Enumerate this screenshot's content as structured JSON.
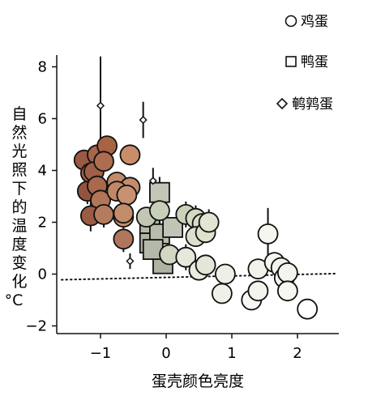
{
  "chart_data": {
    "type": "scatter",
    "xlabel": "蛋壳颜色亮度",
    "ylabel": "自然光照下的温度变化",
    "yunit": "°C",
    "xlim": [
      -1.6,
      2.6
    ],
    "ylim": [
      -2.5,
      8.4
    ],
    "xticks": [
      -1,
      0,
      1,
      2
    ],
    "yticks": [
      -2,
      0,
      2,
      4,
      6,
      8
    ],
    "xtick_labels": [
      "−1",
      "0",
      "1",
      "2"
    ],
    "ytick_labels": [
      "−2",
      "0",
      "2",
      "4",
      "6",
      "8"
    ],
    "trend_line": {
      "style": "dotted",
      "points": [
        [
          -1.6,
          -0.22
        ],
        [
          2.6,
          0.02
        ]
      ]
    },
    "legend": [
      {
        "label": "鸡蛋",
        "marker": "circle"
      },
      {
        "label": "鸭蛋",
        "marker": "square"
      },
      {
        "label": "鹌鹑蛋",
        "marker": "diamond"
      }
    ],
    "series": [
      {
        "name": "鸡蛋",
        "marker": "circle",
        "points": [
          [
            -1.25,
            4.4,
            0.2,
            "#9a5a42"
          ],
          [
            -1.15,
            3.9,
            0.5,
            "#9d5d45"
          ],
          [
            -1.05,
            4.6,
            0.4,
            "#a86648"
          ],
          [
            -0.9,
            4.95,
            0.3,
            "#a76343"
          ],
          [
            -1.1,
            3.95,
            0.5,
            "#a05f46"
          ],
          [
            -0.95,
            4.35,
            0.3,
            "#ae6d50"
          ],
          [
            -1.2,
            3.2,
            0.5,
            "#94533d"
          ],
          [
            -1.05,
            3.4,
            0.4,
            "#a9694c"
          ],
          [
            -1.0,
            2.85,
            0.3,
            "#b37558"
          ],
          [
            -0.75,
            3.55,
            0.3,
            "#c18a6a"
          ],
          [
            -0.55,
            3.35,
            0.3,
            "#c48c6b"
          ],
          [
            -0.55,
            4.6,
            0.4,
            "#c98d69"
          ],
          [
            -0.75,
            3.2,
            0.3,
            "#c08868"
          ],
          [
            -0.6,
            3.05,
            0.3,
            "#c89272"
          ],
          [
            -1.15,
            2.25,
            0.6,
            "#9b5c44"
          ],
          [
            -0.95,
            2.3,
            0.5,
            "#b57b5e"
          ],
          [
            -0.65,
            2.2,
            0.3,
            "#c3906f"
          ],
          [
            -0.65,
            2.35,
            0.3,
            "#c38c6b"
          ],
          [
            -0.65,
            1.35,
            0.5,
            "#b0765d"
          ],
          [
            -0.3,
            2.2,
            0.3,
            "#c3c6b4"
          ],
          [
            -0.1,
            2.45,
            0.3,
            "#c7cfb8"
          ],
          [
            0.3,
            2.3,
            0.5,
            "#c9d1b9"
          ],
          [
            0.45,
            2.15,
            0.5,
            "#d3d9c2"
          ],
          [
            0.55,
            1.95,
            0.3,
            "#d7dcc6"
          ],
          [
            0.45,
            1.45,
            0.4,
            "#dbe0cb"
          ],
          [
            0.6,
            1.6,
            0.3,
            "#dde2cd"
          ],
          [
            0.65,
            2.0,
            0.5,
            "#e1e5d2"
          ],
          [
            0.05,
            0.75,
            0.3,
            "#d2d7c3"
          ],
          [
            0.3,
            0.65,
            0.5,
            "#e5e8da"
          ],
          [
            0.5,
            0.15,
            0.4,
            "#eaece0"
          ],
          [
            0.6,
            0.35,
            0.3,
            "#e3e6d8"
          ],
          [
            0.9,
            0.0,
            0.3,
            "#eef0e7"
          ],
          [
            0.85,
            -0.75,
            0.3,
            "#eff1e8"
          ],
          [
            1.3,
            -1.0,
            0.3,
            "#f7f8f3"
          ],
          [
            1.4,
            -0.65,
            0.3,
            "#f3f4ee"
          ],
          [
            1.4,
            0.2,
            0.3,
            "#f1f3eb"
          ],
          [
            1.55,
            1.55,
            1.0,
            "#f5f6f0"
          ],
          [
            1.65,
            0.45,
            0.3,
            "#f4f5ef"
          ],
          [
            1.75,
            0.25,
            0.3,
            "#f2f4ec"
          ],
          [
            1.8,
            -0.15,
            0.3,
            "#f5f6f0"
          ],
          [
            1.85,
            0.05,
            0.3,
            "#f3f4ee"
          ],
          [
            1.85,
            -0.65,
            0.3,
            "#f6f7f2"
          ],
          [
            2.15,
            -1.35,
            0.3,
            "#ffffff"
          ]
        ]
      },
      {
        "name": "鸭蛋",
        "marker": "square",
        "points": [
          [
            -0.1,
            3.15,
            0.6,
            "#c3c6b7"
          ],
          [
            -0.25,
            1.95,
            0.6,
            "#b5b9a9"
          ],
          [
            -0.25,
            1.2,
            0.5,
            "#afb3a3"
          ],
          [
            -0.1,
            1.55,
            0.5,
            "#b8bcac"
          ],
          [
            -0.05,
            0.4,
            0.4,
            "#aeb2a1"
          ],
          [
            0.1,
            1.8,
            0.3,
            "#c0c4b4"
          ],
          [
            -0.2,
            0.95,
            0.3,
            "#b4b8a8"
          ]
        ]
      },
      {
        "name": "鹌鹑蛋",
        "marker": "diamond",
        "points": [
          [
            -1.0,
            6.5,
            1.9,
            "#ffffff"
          ],
          [
            -0.35,
            5.95,
            0.7,
            "#ffffff"
          ],
          [
            -0.2,
            3.6,
            0.5,
            "#ffffff"
          ],
          [
            -0.55,
            0.5,
            0.3,
            "#ffffff"
          ]
        ]
      }
    ]
  }
}
